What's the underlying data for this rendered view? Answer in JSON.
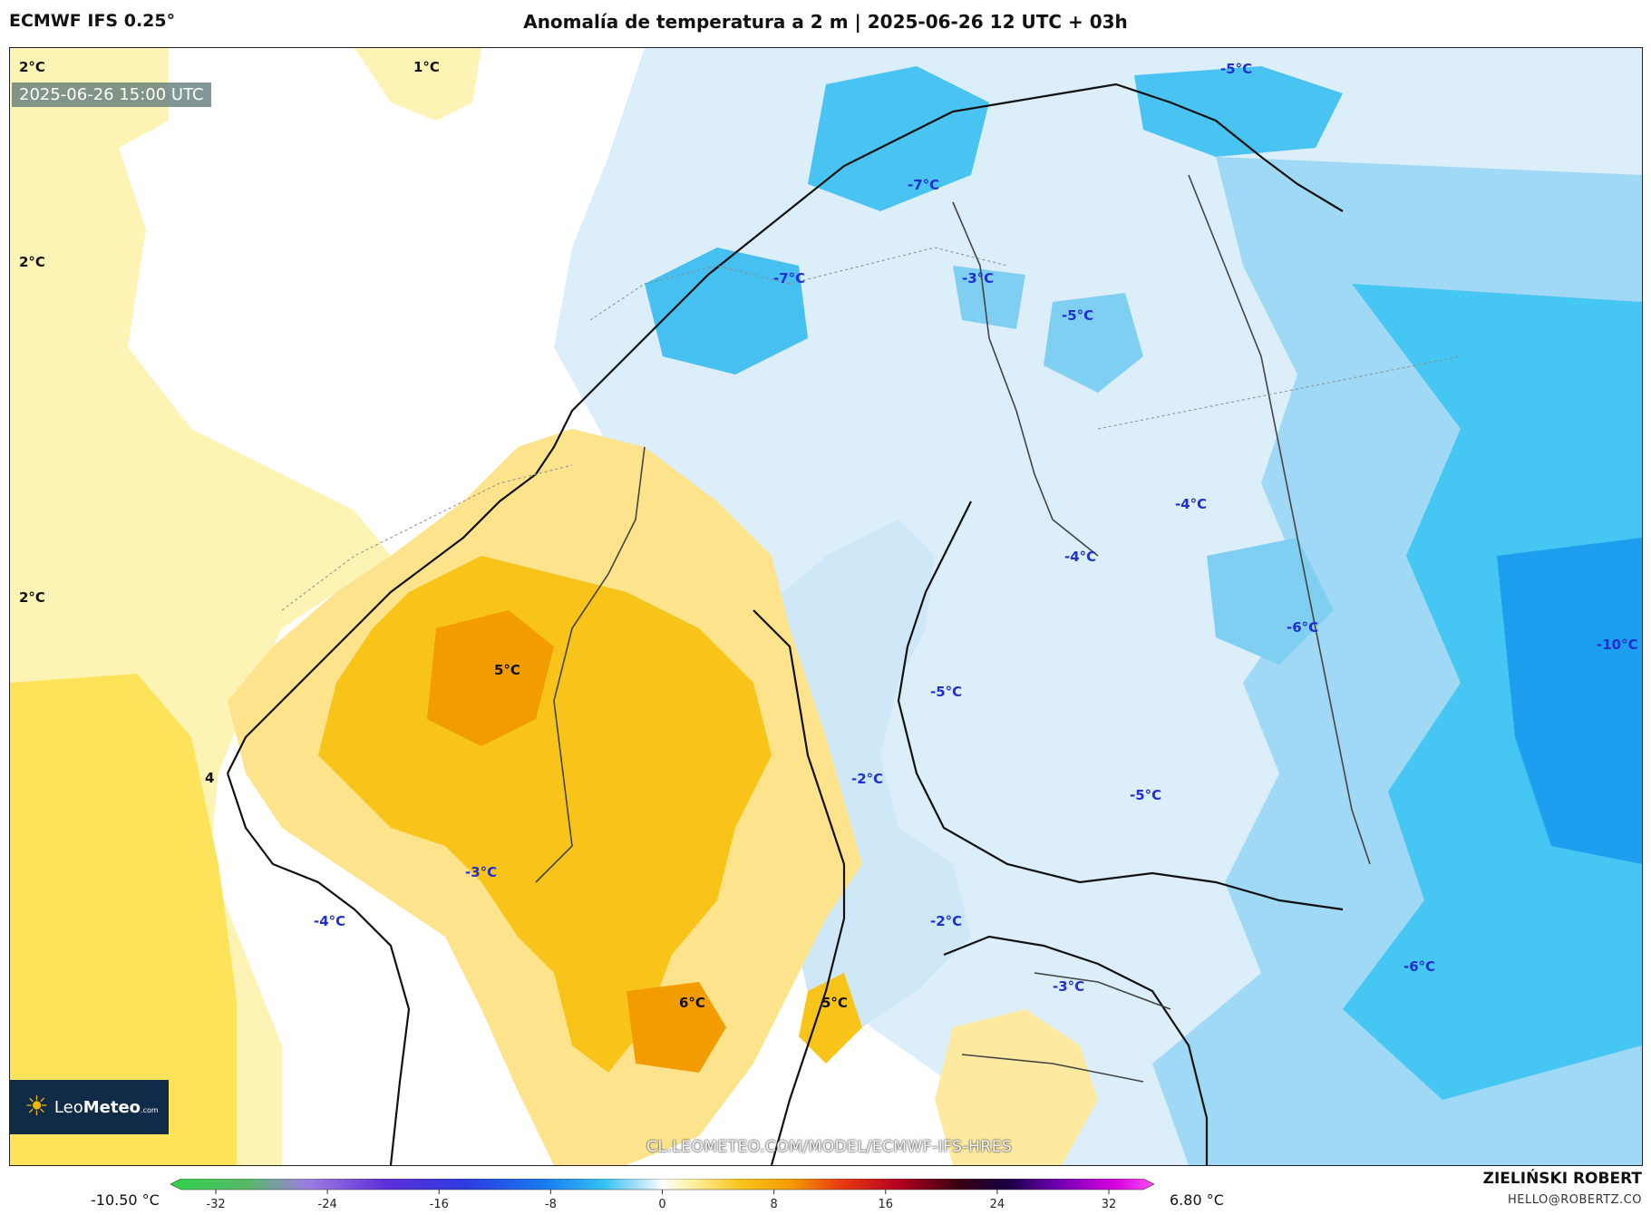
{
  "header": {
    "model": "ECMWF IFS 0.25°",
    "title": "Anomalía de temperatura a 2 m | 2025-06-26 12 UTC + 03h"
  },
  "map": {
    "valid_time": "2025-06-26 15:00 UTC",
    "labels": [
      {
        "text": "2°C",
        "type": "warm"
      },
      {
        "text": "1°C",
        "type": "warm"
      },
      {
        "text": "2°C",
        "type": "warm"
      },
      {
        "text": "2°C",
        "type": "warm"
      },
      {
        "text": "5°C",
        "type": "warm"
      },
      {
        "text": "6°C",
        "type": "warm"
      },
      {
        "text": "5°C",
        "type": "warm"
      },
      {
        "text": "4",
        "type": "warm"
      },
      {
        "text": "-5°C",
        "type": "cold"
      },
      {
        "text": "-7°C",
        "type": "cold"
      },
      {
        "text": "-7°C",
        "type": "cold"
      },
      {
        "text": "-3°C",
        "type": "cold"
      },
      {
        "text": "-5°C",
        "type": "cold"
      },
      {
        "text": "-4°C",
        "type": "cold"
      },
      {
        "text": "-4°C",
        "type": "cold"
      },
      {
        "text": "-6°C",
        "type": "cold"
      },
      {
        "text": "-10°C",
        "type": "cold"
      },
      {
        "text": "-5°C",
        "type": "cold"
      },
      {
        "text": "-2°C",
        "type": "cold"
      },
      {
        "text": "-5°C",
        "type": "cold"
      },
      {
        "text": "-3°C",
        "type": "cold"
      },
      {
        "text": "-4°C",
        "type": "cold"
      },
      {
        "text": "-2°C",
        "type": "cold"
      },
      {
        "text": "-3°C",
        "type": "cold"
      },
      {
        "text": "-6°C",
        "type": "cold"
      }
    ],
    "colors": {
      "warm_light": "#fdf3b4",
      "warm_mid": "#fde35a",
      "warm_strong": "#f9b800",
      "warm_peak": "#f39c00",
      "cold_light": "#dbeefa",
      "cold_mid": "#a9dcf5",
      "cold_strong": "#33c1f2",
      "cold_peak": "#1ea0ee",
      "label_warm": "#111111",
      "label_cold": "#1f2fd0"
    }
  },
  "logo": {
    "brand_a": "Leo",
    "brand_b": "Meteo",
    "brand_c": ".com"
  },
  "watermark": "CL.LEOMETEO.COM/MODEL/ECMWF-IFS-HRES",
  "colorbar": {
    "min_label": "-10.50 °C",
    "max_label": "6.80 °C",
    "ticks": [
      "-32",
      "-24",
      "-16",
      "-8",
      "0",
      "8",
      "16",
      "24",
      "32"
    ]
  },
  "credit": {
    "author": "ZIELIŃSKI ROBERT",
    "email": "HELLO@ROBERTZ.CO"
  }
}
